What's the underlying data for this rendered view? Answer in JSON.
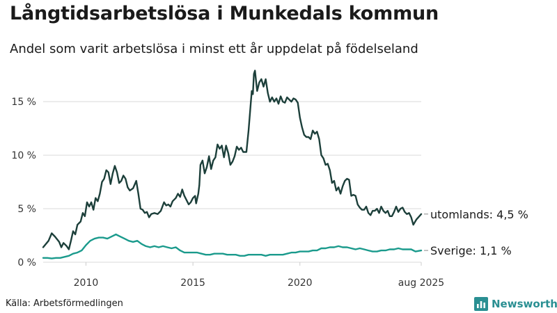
{
  "title": "Långtidsarbetslösa i Munkedals kommun",
  "subtitle": "Andel som varit arbetslösa i minst ett år uppdelat på födelseland",
  "source": "Källa: Arbetsförmedlingen",
  "brand": "Newsworthy",
  "colors": {
    "utomlands": "#1c3f3a",
    "sverige": "#1a9a8c",
    "grid": "#d9d9d9",
    "brand": "#2a8f92"
  },
  "chart_data": {
    "type": "line",
    "x_ticks": [
      "2010",
      "2015",
      "2020",
      "aug 2025"
    ],
    "y_ticks": [
      "0 %",
      "5 %",
      "10 %",
      "15 %"
    ],
    "ylim": [
      0,
      18
    ],
    "xlim": [
      2008.0,
      2025.67
    ],
    "grid": true,
    "series": [
      {
        "key": "utomlands",
        "label": "utomlands: 4,5 %",
        "points": [
          [
            2008.0,
            1.4
          ],
          [
            2008.25,
            2.0
          ],
          [
            2008.4,
            2.7
          ],
          [
            2008.55,
            2.4
          ],
          [
            2008.75,
            1.9
          ],
          [
            2008.85,
            1.4
          ],
          [
            2008.95,
            1.8
          ],
          [
            2009.1,
            1.5
          ],
          [
            2009.2,
            1.2
          ],
          [
            2009.3,
            2.0
          ],
          [
            2009.4,
            2.9
          ],
          [
            2009.5,
            2.6
          ],
          [
            2009.6,
            3.5
          ],
          [
            2009.75,
            3.8
          ],
          [
            2009.85,
            4.6
          ],
          [
            2009.95,
            4.3
          ],
          [
            2010.05,
            5.6
          ],
          [
            2010.15,
            5.2
          ],
          [
            2010.25,
            5.6
          ],
          [
            2010.35,
            4.9
          ],
          [
            2010.45,
            6.0
          ],
          [
            2010.55,
            5.7
          ],
          [
            2010.65,
            6.4
          ],
          [
            2010.75,
            7.5
          ],
          [
            2010.85,
            7.8
          ],
          [
            2010.95,
            8.6
          ],
          [
            2011.05,
            8.4
          ],
          [
            2011.15,
            7.3
          ],
          [
            2011.25,
            8.3
          ],
          [
            2011.35,
            9.0
          ],
          [
            2011.45,
            8.4
          ],
          [
            2011.55,
            7.4
          ],
          [
            2011.65,
            7.6
          ],
          [
            2011.75,
            8.1
          ],
          [
            2011.85,
            7.8
          ],
          [
            2011.95,
            7.0
          ],
          [
            2012.05,
            6.7
          ],
          [
            2012.2,
            6.9
          ],
          [
            2012.35,
            7.6
          ],
          [
            2012.45,
            6.4
          ],
          [
            2012.55,
            5.0
          ],
          [
            2012.65,
            4.9
          ],
          [
            2012.75,
            4.6
          ],
          [
            2012.85,
            4.7
          ],
          [
            2012.95,
            4.2
          ],
          [
            2013.05,
            4.5
          ],
          [
            2013.2,
            4.6
          ],
          [
            2013.35,
            4.5
          ],
          [
            2013.5,
            4.8
          ],
          [
            2013.65,
            5.6
          ],
          [
            2013.75,
            5.3
          ],
          [
            2013.85,
            5.4
          ],
          [
            2013.95,
            5.2
          ],
          [
            2014.05,
            5.7
          ],
          [
            2014.2,
            6.0
          ],
          [
            2014.3,
            6.4
          ],
          [
            2014.4,
            6.1
          ],
          [
            2014.5,
            6.8
          ],
          [
            2014.6,
            6.2
          ],
          [
            2014.7,
            5.8
          ],
          [
            2014.8,
            5.4
          ],
          [
            2014.9,
            5.6
          ],
          [
            2015.0,
            6.0
          ],
          [
            2015.1,
            6.2
          ],
          [
            2015.15,
            5.5
          ],
          [
            2015.25,
            6.4
          ],
          [
            2015.3,
            7.2
          ],
          [
            2015.35,
            9.1
          ],
          [
            2015.45,
            9.5
          ],
          [
            2015.55,
            8.3
          ],
          [
            2015.65,
            8.9
          ],
          [
            2015.75,
            9.9
          ],
          [
            2015.85,
            8.7
          ],
          [
            2015.95,
            9.5
          ],
          [
            2016.05,
            9.8
          ],
          [
            2016.15,
            11.0
          ],
          [
            2016.25,
            10.6
          ],
          [
            2016.35,
            10.9
          ],
          [
            2016.45,
            9.8
          ],
          [
            2016.55,
            10.9
          ],
          [
            2016.65,
            10.2
          ],
          [
            2016.75,
            9.1
          ],
          [
            2016.85,
            9.4
          ],
          [
            2016.95,
            9.9
          ],
          [
            2017.05,
            10.8
          ],
          [
            2017.15,
            10.5
          ],
          [
            2017.25,
            10.7
          ],
          [
            2017.35,
            10.3
          ],
          [
            2017.5,
            10.3
          ],
          [
            2017.6,
            12.3
          ],
          [
            2017.7,
            14.8
          ],
          [
            2017.75,
            16.0
          ],
          [
            2017.8,
            15.7
          ],
          [
            2017.85,
            17.6
          ],
          [
            2017.9,
            17.9
          ],
          [
            2018.0,
            16.0
          ],
          [
            2018.1,
            16.8
          ],
          [
            2018.2,
            17.1
          ],
          [
            2018.3,
            16.4
          ],
          [
            2018.4,
            17.1
          ],
          [
            2018.5,
            15.8
          ],
          [
            2018.6,
            15.0
          ],
          [
            2018.7,
            15.4
          ],
          [
            2018.8,
            15.0
          ],
          [
            2018.9,
            15.3
          ],
          [
            2019.0,
            14.8
          ],
          [
            2019.1,
            15.5
          ],
          [
            2019.2,
            15.0
          ],
          [
            2019.3,
            14.9
          ],
          [
            2019.4,
            15.4
          ],
          [
            2019.5,
            15.2
          ],
          [
            2019.6,
            15.0
          ],
          [
            2019.7,
            15.3
          ],
          [
            2019.8,
            15.2
          ],
          [
            2019.9,
            14.9
          ],
          [
            2020.0,
            13.5
          ],
          [
            2020.1,
            12.6
          ],
          [
            2020.2,
            11.9
          ],
          [
            2020.3,
            11.7
          ],
          [
            2020.4,
            11.7
          ],
          [
            2020.5,
            11.5
          ],
          [
            2020.6,
            12.3
          ],
          [
            2020.7,
            12.0
          ],
          [
            2020.8,
            12.2
          ],
          [
            2020.9,
            11.5
          ],
          [
            2021.0,
            10.0
          ],
          [
            2021.1,
            9.7
          ],
          [
            2021.2,
            9.1
          ],
          [
            2021.3,
            9.2
          ],
          [
            2021.4,
            8.6
          ],
          [
            2021.5,
            7.4
          ],
          [
            2021.6,
            7.6
          ],
          [
            2021.7,
            6.7
          ],
          [
            2021.8,
            7.0
          ],
          [
            2021.9,
            6.4
          ],
          [
            2022.0,
            7.1
          ],
          [
            2022.1,
            7.6
          ],
          [
            2022.2,
            7.8
          ],
          [
            2022.3,
            7.7
          ],
          [
            2022.4,
            6.2
          ],
          [
            2022.5,
            6.3
          ],
          [
            2022.6,
            6.2
          ],
          [
            2022.7,
            5.4
          ],
          [
            2022.8,
            5.1
          ],
          [
            2022.9,
            4.9
          ],
          [
            2023.0,
            4.9
          ],
          [
            2023.1,
            5.2
          ],
          [
            2023.2,
            4.6
          ],
          [
            2023.3,
            4.4
          ],
          [
            2023.4,
            4.8
          ],
          [
            2023.5,
            4.8
          ],
          [
            2023.6,
            5.0
          ],
          [
            2023.7,
            4.6
          ],
          [
            2023.8,
            5.2
          ],
          [
            2023.9,
            4.8
          ],
          [
            2024.0,
            4.6
          ],
          [
            2024.1,
            4.8
          ],
          [
            2024.2,
            4.3
          ],
          [
            2024.3,
            4.3
          ],
          [
            2024.4,
            4.7
          ],
          [
            2024.5,
            5.2
          ],
          [
            2024.6,
            4.7
          ],
          [
            2024.7,
            5.0
          ],
          [
            2024.8,
            5.1
          ],
          [
            2024.9,
            4.7
          ],
          [
            2025.0,
            4.5
          ],
          [
            2025.1,
            4.6
          ],
          [
            2025.2,
            4.2
          ],
          [
            2025.3,
            3.5
          ],
          [
            2025.45,
            4.0
          ],
          [
            2025.67,
            4.5
          ]
        ]
      },
      {
        "key": "sverige",
        "label": "Sverige: 1,1 %",
        "points": [
          [
            2008.0,
            0.4
          ],
          [
            2008.2,
            0.4
          ],
          [
            2008.4,
            0.35
          ],
          [
            2008.6,
            0.4
          ],
          [
            2008.8,
            0.4
          ],
          [
            2009.0,
            0.5
          ],
          [
            2009.2,
            0.6
          ],
          [
            2009.4,
            0.8
          ],
          [
            2009.6,
            0.9
          ],
          [
            2009.8,
            1.1
          ],
          [
            2010.0,
            1.6
          ],
          [
            2010.2,
            2.0
          ],
          [
            2010.4,
            2.2
          ],
          [
            2010.6,
            2.3
          ],
          [
            2010.8,
            2.3
          ],
          [
            2011.0,
            2.2
          ],
          [
            2011.2,
            2.4
          ],
          [
            2011.4,
            2.6
          ],
          [
            2011.6,
            2.4
          ],
          [
            2011.8,
            2.2
          ],
          [
            2012.0,
            2.0
          ],
          [
            2012.2,
            1.9
          ],
          [
            2012.4,
            2.0
          ],
          [
            2012.6,
            1.7
          ],
          [
            2012.8,
            1.5
          ],
          [
            2013.0,
            1.4
          ],
          [
            2013.2,
            1.5
          ],
          [
            2013.4,
            1.4
          ],
          [
            2013.6,
            1.5
          ],
          [
            2013.8,
            1.4
          ],
          [
            2014.0,
            1.3
          ],
          [
            2014.2,
            1.4
          ],
          [
            2014.4,
            1.1
          ],
          [
            2014.6,
            0.9
          ],
          [
            2014.8,
            0.9
          ],
          [
            2015.0,
            0.9
          ],
          [
            2015.2,
            0.9
          ],
          [
            2015.4,
            0.8
          ],
          [
            2015.6,
            0.7
          ],
          [
            2015.8,
            0.7
          ],
          [
            2016.0,
            0.8
          ],
          [
            2016.2,
            0.8
          ],
          [
            2016.4,
            0.8
          ],
          [
            2016.6,
            0.7
          ],
          [
            2016.8,
            0.7
          ],
          [
            2017.0,
            0.7
          ],
          [
            2017.2,
            0.6
          ],
          [
            2017.4,
            0.6
          ],
          [
            2017.6,
            0.7
          ],
          [
            2017.8,
            0.7
          ],
          [
            2018.0,
            0.7
          ],
          [
            2018.2,
            0.7
          ],
          [
            2018.4,
            0.6
          ],
          [
            2018.6,
            0.7
          ],
          [
            2018.8,
            0.7
          ],
          [
            2019.0,
            0.7
          ],
          [
            2019.2,
            0.7
          ],
          [
            2019.4,
            0.8
          ],
          [
            2019.6,
            0.9
          ],
          [
            2019.8,
            0.9
          ],
          [
            2020.0,
            1.0
          ],
          [
            2020.2,
            1.0
          ],
          [
            2020.4,
            1.0
          ],
          [
            2020.6,
            1.1
          ],
          [
            2020.8,
            1.1
          ],
          [
            2021.0,
            1.3
          ],
          [
            2021.2,
            1.3
          ],
          [
            2021.4,
            1.4
          ],
          [
            2021.6,
            1.4
          ],
          [
            2021.8,
            1.5
          ],
          [
            2022.0,
            1.4
          ],
          [
            2022.2,
            1.4
          ],
          [
            2022.4,
            1.3
          ],
          [
            2022.6,
            1.2
          ],
          [
            2022.8,
            1.3
          ],
          [
            2023.0,
            1.2
          ],
          [
            2023.2,
            1.1
          ],
          [
            2023.4,
            1.0
          ],
          [
            2023.6,
            1.0
          ],
          [
            2023.8,
            1.1
          ],
          [
            2024.0,
            1.1
          ],
          [
            2024.2,
            1.2
          ],
          [
            2024.4,
            1.2
          ],
          [
            2024.6,
            1.3
          ],
          [
            2024.8,
            1.2
          ],
          [
            2025.0,
            1.2
          ],
          [
            2025.2,
            1.2
          ],
          [
            2025.4,
            1.0
          ],
          [
            2025.67,
            1.1
          ]
        ]
      }
    ]
  }
}
